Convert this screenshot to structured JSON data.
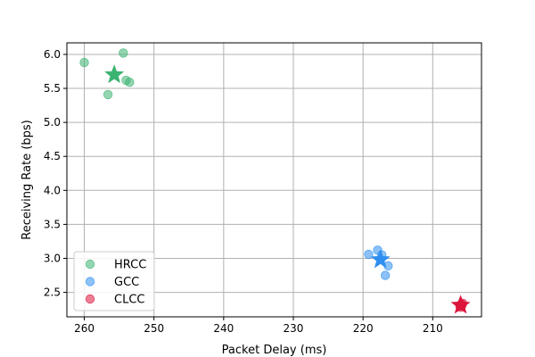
{
  "chart_data": {
    "type": "scatter",
    "xlabel": "Packet Delay (ms)",
    "ylabel": "Receiving Rate (bps)",
    "x_inverted": true,
    "xlim": [
      262.5,
      203
    ],
    "ylim": [
      2.14,
      6.17
    ],
    "xticks": [
      260,
      250,
      240,
      230,
      220,
      210
    ],
    "xtick_labels": [
      "260",
      "250",
      "240",
      "230",
      "220",
      "210"
    ],
    "yticks": [
      2.5,
      3.0,
      3.5,
      4.0,
      4.5,
      5.0,
      5.5,
      6.0
    ],
    "ytick_labels": [
      "2.5",
      "3.0",
      "3.5",
      "4.0",
      "4.5",
      "5.0",
      "5.5",
      "6.0"
    ],
    "grid": true,
    "legend_position": "lower-left",
    "series": [
      {
        "name": "HRCC",
        "color": "#3cb371",
        "points": [
          [
            260.0,
            5.88
          ],
          [
            254.4,
            6.02
          ],
          [
            256.6,
            5.41
          ],
          [
            254.0,
            5.62
          ],
          [
            253.5,
            5.59
          ]
        ],
        "centroid": [
          255.7,
          5.7
        ]
      },
      {
        "name": "GCC",
        "color": "#2e8ff0",
        "points": [
          [
            219.2,
            3.06
          ],
          [
            217.9,
            3.12
          ],
          [
            217.3,
            3.05
          ],
          [
            216.4,
            2.89
          ],
          [
            216.8,
            2.75
          ]
        ],
        "centroid": [
          217.5,
          2.98
        ]
      },
      {
        "name": "CLCC",
        "color": "#dc143c",
        "points": [
          [
            206.1,
            2.3
          ],
          [
            205.7,
            2.34
          ],
          [
            206.0,
            2.28
          ],
          [
            205.8,
            2.31
          ],
          [
            205.9,
            2.33
          ]
        ],
        "centroid": [
          206.0,
          2.31
        ]
      }
    ]
  }
}
